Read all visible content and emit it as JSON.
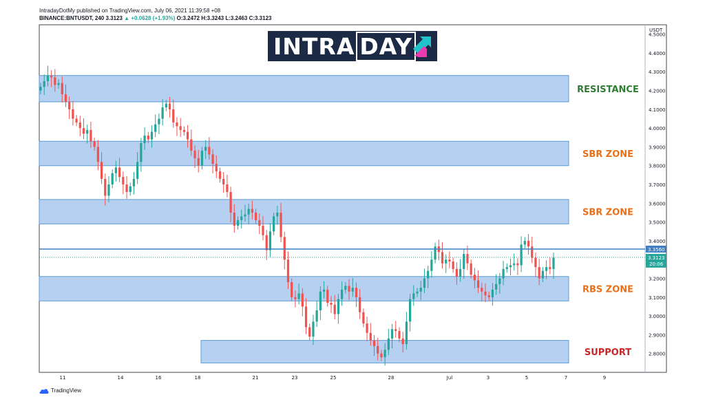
{
  "header": {
    "line1": "IntradayDotMy published on TradingView.com, July 06, 2021 11:39:58 +08",
    "symbol": "BINANCE:BNTUSDT, 240",
    "last": "3.3123",
    "change": "+0.0628 (+1.93%)",
    "ohlc": "O:3.2472 H:3.3243 L:3.2463 C:3.3123"
  },
  "logo": {
    "text_a": "INTRA",
    "text_b": "DAY"
  },
  "footer": {
    "brand": "TradingView"
  },
  "colors": {
    "up": "#26a69a",
    "down": "#ef5350",
    "zone_fill": "#a8c8ee",
    "zone_stroke": "#5b9bd5",
    "resistance": "#2e7d32",
    "orange": "#e8701a",
    "support": "#c62828",
    "hline": "#3f7fbf",
    "price_tag": "#26a69a",
    "logo_bg": "#1d2a45"
  },
  "chart_data": {
    "type": "candlestick",
    "currency": "USDT",
    "ylim": [
      2.7,
      4.55
    ],
    "y_ticks": [
      "4.5000",
      "4.4000",
      "4.3000",
      "4.2000",
      "4.1000",
      "4.0000",
      "3.9000",
      "3.8000",
      "3.7000",
      "3.6000",
      "3.5000",
      "3.4000",
      "3.3000",
      "3.2000",
      "3.1000",
      "3.0000",
      "2.9000",
      "2.8000"
    ],
    "x_ticks": [
      "11",
      "14",
      "16",
      "18",
      "21",
      "23",
      "25",
      "28",
      "Jul",
      "3",
      "5",
      "7",
      "9"
    ],
    "horizontal_line": {
      "value": 3.356,
      "label": "3.3560"
    },
    "last_price": {
      "value": 3.3123,
      "label": "3.3123",
      "countdown": "20:06"
    },
    "zones": [
      {
        "label": "RESISTANCE",
        "low": 4.14,
        "high": 4.28,
        "color_key": "resistance"
      },
      {
        "label": "SBR ZONE",
        "low": 3.8,
        "high": 3.93,
        "color_key": "orange"
      },
      {
        "label": "SBR ZONE",
        "low": 3.49,
        "high": 3.62,
        "color_key": "orange"
      },
      {
        "label": "RBS ZONE",
        "low": 3.08,
        "high": 3.21,
        "color_key": "orange"
      },
      {
        "label": "SUPPORT",
        "low": 2.75,
        "high": 2.87,
        "color_key": "support"
      }
    ],
    "close": [
      4.22,
      4.25,
      4.28,
      4.27,
      4.23,
      4.24,
      4.18,
      4.14,
      4.1,
      4.05,
      4.03,
      4.0,
      3.97,
      3.99,
      3.93,
      3.9,
      3.82,
      3.73,
      3.64,
      3.7,
      3.76,
      3.79,
      3.74,
      3.7,
      3.66,
      3.69,
      3.73,
      3.82,
      3.92,
      3.96,
      3.94,
      3.98,
      4.02,
      4.05,
      4.11,
      4.13,
      4.1,
      4.03,
      4.01,
      3.99,
      3.98,
      3.94,
      3.88,
      3.84,
      3.8,
      3.88,
      3.9,
      3.86,
      3.81,
      3.77,
      3.73,
      3.7,
      3.66,
      3.55,
      3.48,
      3.51,
      3.53,
      3.54,
      3.57,
      3.55,
      3.51,
      3.48,
      3.43,
      3.35,
      3.45,
      3.53,
      3.55,
      3.42,
      3.3,
      3.18,
      3.1,
      3.09,
      3.12,
      3.05,
      2.94,
      2.89,
      2.97,
      3.03,
      3.13,
      3.14,
      3.07,
      3.06,
      3.01,
      3.09,
      3.14,
      3.16,
      3.13,
      3.15,
      3.1,
      3.02,
      2.96,
      2.91,
      2.87,
      2.84,
      2.8,
      2.78,
      2.82,
      2.88,
      2.93,
      2.92,
      2.88,
      2.85,
      2.97,
      3.09,
      3.12,
      3.13,
      3.15,
      3.2,
      3.24,
      3.3,
      3.37,
      3.34,
      3.28,
      3.3,
      3.29,
      3.25,
      3.21,
      3.25,
      3.33,
      3.28,
      3.22,
      3.19,
      3.15,
      3.13,
      3.11,
      3.1,
      3.14,
      3.17,
      3.2,
      3.25,
      3.26,
      3.27,
      3.28,
      3.27,
      3.38,
      3.4,
      3.37,
      3.31,
      3.26,
      3.2,
      3.24,
      3.26,
      3.25,
      3.31
    ]
  }
}
